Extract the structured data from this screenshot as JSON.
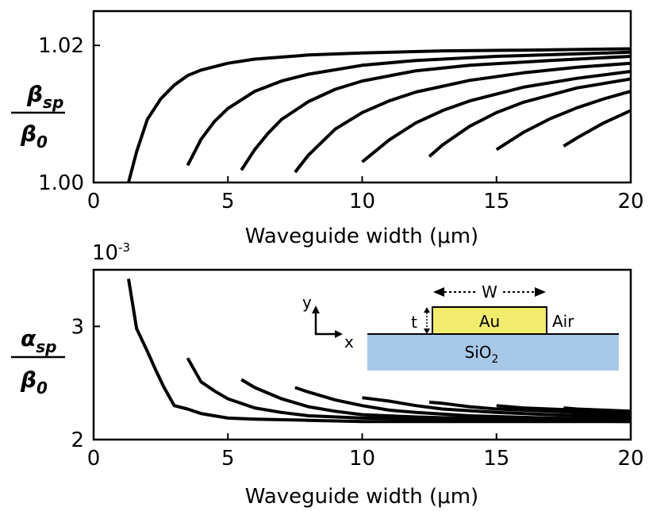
{
  "chart_data": [
    {
      "type": "line",
      "ylabel_num": "β",
      "ylabel_num_sub": "sp",
      "ylabel_den": "β",
      "ylabel_den_sub": "0",
      "xlabel": "Waveguide width (μm)",
      "xlim": [
        0,
        20
      ],
      "ylim": [
        1.0,
        1.025
      ],
      "xticks": [
        "0",
        "5",
        "10",
        "15",
        "20"
      ],
      "yticks": [
        "1.00",
        "1.02"
      ],
      "ytick_values": [
        1.0,
        1.02
      ],
      "series": [
        {
          "x": [
            1.3,
            1.6,
            2.0,
            2.5,
            3.0,
            3.5,
            4.0,
            5.0,
            6.0,
            8.0,
            10.0,
            13.0,
            16.0,
            20.0
          ],
          "y": [
            1.0,
            1.0045,
            1.0092,
            1.0122,
            1.0142,
            1.0156,
            1.0164,
            1.0174,
            1.018,
            1.0186,
            1.0189,
            1.0192,
            1.0193,
            1.0195
          ]
        },
        {
          "x": [
            3.5,
            4.0,
            4.5,
            5.0,
            6.0,
            7.0,
            8.0,
            10.0,
            12.0,
            15.0,
            20.0
          ],
          "y": [
            1.0025,
            1.0063,
            1.0089,
            1.0108,
            1.0133,
            1.0148,
            1.0158,
            1.0171,
            1.0178,
            1.0184,
            1.019
          ]
        },
        {
          "x": [
            5.5,
            6.0,
            6.5,
            7.0,
            8.0,
            9.0,
            10.0,
            12.0,
            14.0,
            17.0,
            20.0
          ],
          "y": [
            1.0018,
            1.0048,
            1.0072,
            1.0092,
            1.0118,
            1.0136,
            1.0148,
            1.0163,
            1.0171,
            1.0178,
            1.0184
          ]
        },
        {
          "x": [
            7.5,
            8.0,
            9.0,
            10.0,
            11.0,
            12.0,
            14.0,
            16.0,
            18.0,
            20.0
          ],
          "y": [
            1.0015,
            1.004,
            1.0078,
            1.0102,
            1.0119,
            1.0132,
            1.0149,
            1.016,
            1.0168,
            1.0174
          ]
        },
        {
          "x": [
            10.0,
            11.0,
            12.0,
            13.0,
            14.0,
            16.0,
            18.0,
            20.0
          ],
          "y": [
            1.003,
            1.0062,
            1.0087,
            1.0105,
            1.0119,
            1.0139,
            1.0152,
            1.0162
          ]
        },
        {
          "x": [
            12.5,
            13.0,
            14.0,
            15.0,
            16.0,
            18.0,
            20.0
          ],
          "y": [
            1.0038,
            1.0055,
            1.0082,
            1.0102,
            1.0117,
            1.0138,
            1.0151
          ]
        },
        {
          "x": [
            15.0,
            16.0,
            17.0,
            18.0,
            19.0,
            20.0
          ],
          "y": [
            1.0048,
            1.0073,
            1.0093,
            1.0109,
            1.0122,
            1.0133
          ]
        },
        {
          "x": [
            17.5,
            18.0,
            19.0,
            20.0
          ],
          "y": [
            1.0053,
            1.0065,
            1.0087,
            1.0105
          ]
        }
      ]
    },
    {
      "type": "line",
      "ylabel_num": "α",
      "ylabel_num_sub": "sp",
      "ylabel_den": "β",
      "ylabel_den_sub": "0",
      "exponent_base": "10",
      "exponent_power": "-3",
      "xlabel": "Waveguide width (μm)",
      "xlim": [
        0,
        20
      ],
      "ylim": [
        2.0,
        3.5
      ],
      "xticks": [
        "0",
        "5",
        "10",
        "15",
        "20"
      ],
      "yticks": [
        "2",
        "3"
      ],
      "ytick_values": [
        2,
        3
      ],
      "series": [
        {
          "x": [
            1.3,
            1.6,
            2.0,
            2.3,
            2.6,
            3.0,
            3.5,
            4.0,
            5.0,
            6.0,
            8.0,
            10.0,
            14.0,
            20.0
          ],
          "y": [
            3.42,
            2.98,
            2.78,
            2.62,
            2.47,
            2.3,
            2.27,
            2.23,
            2.19,
            2.18,
            2.17,
            2.16,
            2.16,
            2.16
          ]
        },
        {
          "x": [
            3.5,
            4.0,
            4.5,
            5.0,
            6.0,
            7.0,
            8.0,
            10.0,
            13.0,
            16.0,
            20.0
          ],
          "y": [
            2.72,
            2.51,
            2.43,
            2.36,
            2.28,
            2.24,
            2.21,
            2.19,
            2.18,
            2.17,
            2.16
          ]
        },
        {
          "x": [
            5.5,
            6.0,
            7.0,
            8.0,
            9.0,
            10.0,
            12.0,
            15.0,
            20.0
          ],
          "y": [
            2.53,
            2.46,
            2.36,
            2.29,
            2.25,
            2.22,
            2.2,
            2.18,
            2.17
          ]
        },
        {
          "x": [
            7.5,
            8.0,
            9.0,
            10.0,
            11.0,
            12.0,
            14.0,
            17.0,
            20.0
          ],
          "y": [
            2.46,
            2.42,
            2.35,
            2.3,
            2.26,
            2.24,
            2.21,
            2.19,
            2.18
          ]
        },
        {
          "x": [
            10.0,
            11.0,
            12.0,
            13.0,
            15.0,
            17.0,
            20.0
          ],
          "y": [
            2.37,
            2.34,
            2.3,
            2.27,
            2.24,
            2.22,
            2.2
          ]
        },
        {
          "x": [
            12.5,
            13.0,
            14.0,
            15.0,
            17.0,
            20.0
          ],
          "y": [
            2.33,
            2.32,
            2.29,
            2.27,
            2.25,
            2.22
          ]
        },
        {
          "x": [
            15.0,
            16.0,
            17.0,
            18.0,
            20.0
          ],
          "y": [
            2.3,
            2.28,
            2.27,
            2.26,
            2.24
          ]
        },
        {
          "x": [
            17.5,
            18.0,
            19.0,
            20.0
          ],
          "y": [
            2.28,
            2.27,
            2.26,
            2.25
          ]
        }
      ],
      "inset": {
        "width_label": "W",
        "thickness_label": "t",
        "metal_label": "Au",
        "cladding_label": "Air",
        "substrate_label": "SiO",
        "substrate_sub": "2",
        "axis_y_label": "y",
        "axis_x_label": "x",
        "metal_color": "#f2ec6e",
        "substrate_color": "#a8c8e8"
      }
    }
  ]
}
